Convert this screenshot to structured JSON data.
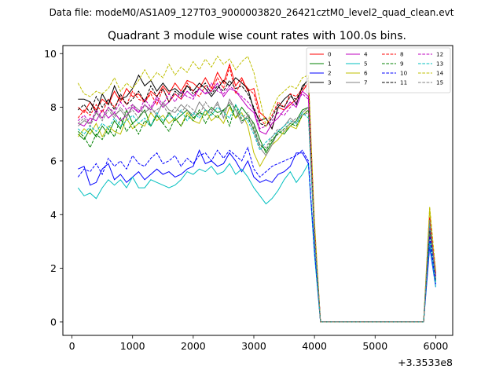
{
  "chart_data": {
    "type": "line",
    "suptitle": "Data file: modeM0/AS1A09_127T03_9000003820_26421cztM0_level2_quad_clean.evt",
    "title": "Quadrant 3 module wise count rates with 100.0s bins.",
    "xlabel": "",
    "ylabel": "",
    "x_offset_label": "+3.3533e8",
    "xlim": [
      -150,
      6280
    ],
    "ylim": [
      -0.5,
      10.3
    ],
    "xticks": [
      0,
      1000,
      2000,
      3000,
      4000,
      5000,
      6000
    ],
    "yticks": [
      0,
      2,
      4,
      6,
      8,
      10
    ],
    "grid": false,
    "legend_position": "top-right",
    "legend_columns": 4,
    "x": [
      100,
      200,
      300,
      400,
      500,
      600,
      700,
      800,
      900,
      1000,
      1100,
      1200,
      1300,
      1400,
      1500,
      1600,
      1700,
      1800,
      1900,
      2000,
      2100,
      2200,
      2300,
      2400,
      2500,
      2600,
      2700,
      2800,
      2900,
      3000,
      3100,
      3200,
      3300,
      3400,
      3500,
      3600,
      3700,
      3800,
      3900,
      4000,
      4100,
      4200,
      4300,
      4400,
      4500,
      4600,
      4700,
      4800,
      4900,
      5000,
      5100,
      5200,
      5300,
      5400,
      5500,
      5600,
      5700,
      5800,
      5900,
      6000
    ],
    "series": [
      {
        "name": "0",
        "color": "#ff0000",
        "dash": "solid",
        "values": [
          8.0,
          7.8,
          8.2,
          7.9,
          8.3,
          8.1,
          8.6,
          8.2,
          8.7,
          8.4,
          8.5,
          8.2,
          8.6,
          8.4,
          8.8,
          8.5,
          8.9,
          8.6,
          9.0,
          8.9,
          8.7,
          9.1,
          8.7,
          9.3,
          8.9,
          9.6,
          8.8,
          9.1,
          8.6,
          8.7,
          7.8,
          7.6,
          7.2,
          8.0,
          7.9,
          8.1,
          8.3,
          8.6,
          8.9,
          3.5,
          0.0,
          0,
          0,
          0,
          0,
          0,
          0,
          0,
          0,
          0,
          0,
          0,
          0,
          0,
          0,
          0,
          0,
          0.0,
          3.9,
          1.8
        ]
      },
      {
        "name": "1",
        "color": "#008000",
        "dash": "solid",
        "values": [
          7.0,
          6.8,
          7.2,
          6.9,
          7.3,
          7.0,
          7.5,
          7.2,
          7.9,
          7.4,
          7.6,
          7.9,
          7.3,
          7.7,
          7.4,
          7.8,
          7.5,
          7.7,
          7.9,
          7.6,
          7.8,
          7.7,
          8.0,
          7.8,
          7.9,
          8.1,
          7.6,
          8.0,
          7.7,
          7.4,
          6.8,
          6.3,
          6.7,
          7.1,
          7.0,
          7.3,
          7.5,
          7.9,
          8.0,
          3.3,
          0.0,
          0,
          0,
          0,
          0,
          0,
          0,
          0,
          0,
          0,
          0,
          0,
          0,
          0,
          0,
          0,
          0,
          0.0,
          3.5,
          1.6
        ]
      },
      {
        "name": "2",
        "color": "#0000ff",
        "dash": "solid",
        "values": [
          5.7,
          5.8,
          5.1,
          5.2,
          5.7,
          5.9,
          5.3,
          5.5,
          5.2,
          5.4,
          5.6,
          5.3,
          5.5,
          5.7,
          5.5,
          5.6,
          5.4,
          5.5,
          5.7,
          5.8,
          6.4,
          5.9,
          6.0,
          5.8,
          5.9,
          6.3,
          6.0,
          5.6,
          6.0,
          5.4,
          5.2,
          5.3,
          5.2,
          5.5,
          5.6,
          5.8,
          6.3,
          6.3,
          5.9,
          2.6,
          0.0,
          0,
          0,
          0,
          0,
          0,
          0,
          0,
          0,
          0,
          0,
          0,
          0,
          0,
          0,
          0,
          0,
          0.0,
          2.8,
          1.3
        ]
      },
      {
        "name": "3",
        "color": "#000000",
        "dash": "solid",
        "values": [
          8.3,
          8.3,
          8.2,
          7.8,
          8.5,
          8.1,
          8.8,
          8.3,
          8.4,
          8.7,
          9.2,
          8.8,
          9.0,
          8.6,
          8.9,
          8.6,
          8.7,
          8.5,
          8.8,
          8.6,
          8.9,
          8.7,
          8.4,
          8.7,
          9.0,
          8.8,
          9.1,
          8.9,
          8.7,
          7.9,
          7.5,
          7.6,
          7.2,
          8.0,
          8.3,
          8.5,
          8.1,
          8.8,
          9.0,
          3.4,
          0.0,
          0,
          0,
          0,
          0,
          0,
          0,
          0,
          0,
          0,
          0,
          0,
          0,
          0,
          0,
          0,
          0,
          0.0,
          3.6,
          1.7
        ]
      },
      {
        "name": "4",
        "color": "#bf00bf",
        "dash": "solid",
        "values": [
          7.4,
          7.3,
          7.6,
          7.5,
          7.9,
          7.6,
          7.8,
          7.5,
          7.7,
          8.0,
          7.8,
          8.1,
          7.9,
          8.3,
          8.0,
          8.2,
          8.5,
          8.3,
          8.6,
          8.4,
          8.7,
          8.5,
          8.6,
          8.9,
          8.4,
          8.7,
          8.6,
          8.3,
          8.0,
          7.8,
          7.1,
          7.0,
          7.4,
          7.6,
          7.9,
          8.2,
          8.0,
          8.6,
          8.4,
          3.4,
          0.0,
          0,
          0,
          0,
          0,
          0,
          0,
          0,
          0,
          0,
          0,
          0,
          0,
          0,
          0,
          0,
          0,
          0.0,
          3.7,
          1.6
        ]
      },
      {
        "name": "5",
        "color": "#00bfbf",
        "dash": "solid",
        "values": [
          5.0,
          4.7,
          4.8,
          4.6,
          5.0,
          5.3,
          5.1,
          5.3,
          5.0,
          5.4,
          5.0,
          5.0,
          5.3,
          5.2,
          5.1,
          5.0,
          5.1,
          5.3,
          5.6,
          5.5,
          5.7,
          5.6,
          5.8,
          5.5,
          5.6,
          5.9,
          5.5,
          5.7,
          5.4,
          5.0,
          4.7,
          4.4,
          4.6,
          4.9,
          5.3,
          5.6,
          5.2,
          5.5,
          5.9,
          2.5,
          0.0,
          0,
          0,
          0,
          0,
          0,
          0,
          0,
          0,
          0,
          0,
          0,
          0,
          0,
          0,
          0,
          0,
          0.0,
          3.0,
          1.3
        ]
      },
      {
        "name": "6",
        "color": "#bfbf00",
        "dash": "solid",
        "values": [
          6.9,
          7.2,
          7.0,
          7.4,
          6.9,
          7.3,
          7.1,
          7.0,
          7.6,
          7.2,
          7.4,
          7.3,
          7.8,
          7.5,
          7.7,
          7.4,
          7.6,
          7.3,
          7.8,
          7.5,
          7.4,
          7.9,
          7.5,
          7.7,
          7.4,
          8.0,
          7.6,
          7.8,
          7.3,
          6.3,
          5.8,
          6.2,
          6.6,
          6.8,
          7.1,
          7.3,
          7.2,
          7.7,
          7.9,
          3.2,
          0.0,
          0,
          0,
          0,
          0,
          0,
          0,
          0,
          0,
          0,
          0,
          0,
          0,
          0,
          0,
          0,
          0,
          0.0,
          4.2,
          1.5
        ]
      },
      {
        "name": "7",
        "color": "#808080",
        "dash": "solid",
        "values": [
          7.3,
          7.5,
          7.4,
          7.8,
          7.6,
          8.0,
          7.7,
          7.9,
          7.6,
          8.1,
          7.9,
          7.8,
          8.0,
          7.7,
          8.2,
          7.9,
          7.8,
          8.1,
          7.9,
          7.7,
          8.2,
          7.9,
          7.8,
          8.2,
          7.6,
          8.3,
          7.9,
          7.4,
          7.7,
          7.1,
          6.5,
          6.2,
          6.6,
          7.1,
          7.3,
          7.6,
          7.4,
          7.8,
          8.0,
          3.3,
          0.0,
          0,
          0,
          0,
          0,
          0,
          0,
          0,
          0,
          0,
          0,
          0,
          0,
          0,
          0,
          0,
          0,
          0.0,
          3.8,
          1.6
        ]
      },
      {
        "name": "8",
        "color": "#ff0000",
        "dash": "dashed",
        "values": [
          7.6,
          7.9,
          7.7,
          8.1,
          7.8,
          8.3,
          8.0,
          8.4,
          8.1,
          8.6,
          8.3,
          8.2,
          8.5,
          8.1,
          8.7,
          8.2,
          8.5,
          8.3,
          8.9,
          8.6,
          8.4,
          8.8,
          8.6,
          9.1,
          8.7,
          9.5,
          8.5,
          9.0,
          8.7,
          8.5,
          7.6,
          7.3,
          7.7,
          8.2,
          8.0,
          8.5,
          8.4,
          8.7,
          8.9,
          3.6,
          0.0,
          0,
          0,
          0,
          0,
          0,
          0,
          0,
          0,
          0,
          0,
          0,
          0,
          0,
          0,
          0,
          0,
          0.0,
          3.9,
          1.8
        ]
      },
      {
        "name": "9",
        "color": "#008000",
        "dash": "dashed",
        "values": [
          7.1,
          6.9,
          6.5,
          7.0,
          6.8,
          7.2,
          6.9,
          7.6,
          7.1,
          7.4,
          7.0,
          7.5,
          7.3,
          7.7,
          7.4,
          7.1,
          7.6,
          7.3,
          7.7,
          7.5,
          7.9,
          7.4,
          7.8,
          7.6,
          7.9,
          7.3,
          8.1,
          7.5,
          7.6,
          7.2,
          6.6,
          6.4,
          6.8,
          7.0,
          7.2,
          7.4,
          7.3,
          7.7,
          7.9,
          3.2,
          0.0,
          0,
          0,
          0,
          0,
          0,
          0,
          0,
          0,
          0,
          0,
          0,
          0,
          0,
          0,
          0,
          0,
          0.0,
          3.4,
          1.5
        ]
      },
      {
        "name": "10",
        "color": "#0000ff",
        "dash": "dashed",
        "values": [
          5.4,
          5.7,
          5.6,
          5.9,
          5.5,
          6.1,
          5.8,
          6.0,
          5.7,
          6.2,
          5.9,
          5.8,
          6.1,
          6.3,
          5.9,
          6.0,
          6.2,
          5.8,
          6.1,
          5.9,
          6.2,
          6.3,
          6.0,
          6.4,
          6.1,
          6.4,
          6.2,
          6.0,
          6.5,
          5.7,
          5.4,
          5.6,
          5.8,
          5.9,
          6.0,
          6.1,
          6.2,
          6.4,
          6.0,
          2.7,
          0.0,
          0,
          0,
          0,
          0,
          0,
          0,
          0,
          0,
          0,
          0,
          0,
          0,
          0,
          0,
          0,
          0,
          0.0,
          3.2,
          1.4
        ]
      },
      {
        "name": "11",
        "color": "#000000",
        "dash": "dashed",
        "values": [
          7.9,
          8.1,
          7.8,
          8.4,
          8.0,
          8.3,
          7.9,
          8.5,
          8.1,
          8.3,
          8.6,
          8.2,
          8.8,
          8.4,
          8.7,
          8.2,
          8.6,
          8.4,
          8.8,
          8.5,
          8.7,
          8.9,
          8.5,
          8.8,
          8.6,
          9.0,
          8.7,
          8.8,
          8.5,
          8.0,
          7.4,
          7.3,
          7.6,
          8.1,
          8.0,
          8.4,
          8.3,
          8.7,
          9.1,
          3.5,
          0.0,
          0,
          0,
          0,
          0,
          0,
          0,
          0,
          0,
          0,
          0,
          0,
          0,
          0,
          0,
          0,
          0,
          0.0,
          3.5,
          1.7
        ]
      },
      {
        "name": "12",
        "color": "#bf00bf",
        "dash": "dashed",
        "values": [
          7.5,
          7.7,
          7.4,
          7.9,
          7.6,
          8.0,
          7.8,
          8.2,
          7.9,
          8.1,
          7.8,
          8.3,
          8.0,
          8.4,
          8.1,
          8.5,
          8.2,
          8.6,
          8.4,
          8.3,
          8.7,
          8.5,
          8.9,
          8.6,
          8.5,
          8.8,
          8.6,
          8.4,
          8.2,
          7.9,
          7.2,
          7.3,
          7.5,
          7.8,
          7.7,
          8.0,
          8.2,
          8.5,
          8.3,
          3.4,
          0.0,
          0,
          0,
          0,
          0,
          0,
          0,
          0,
          0,
          0,
          0,
          0,
          0,
          0,
          0,
          0,
          0,
          0.0,
          3.6,
          1.7
        ]
      },
      {
        "name": "13",
        "color": "#00bfbf",
        "dash": "dashed",
        "values": [
          7.2,
          7.0,
          7.3,
          7.1,
          7.4,
          7.2,
          7.6,
          7.3,
          7.5,
          7.7,
          7.4,
          7.6,
          7.3,
          7.8,
          7.5,
          7.7,
          7.6,
          7.9,
          7.5,
          7.8,
          7.6,
          7.9,
          7.7,
          8.0,
          7.8,
          7.6,
          8.1,
          7.7,
          7.5,
          7.0,
          6.4,
          6.7,
          6.9,
          7.1,
          7.3,
          7.5,
          7.4,
          7.8,
          7.6,
          3.1,
          0.0,
          0,
          0,
          0,
          0,
          0,
          0,
          0,
          0,
          0,
          0,
          0,
          0,
          0,
          0,
          0,
          0,
          0.0,
          3.7,
          1.5
        ]
      },
      {
        "name": "14",
        "color": "#bfbf00",
        "dash": "dashed",
        "values": [
          8.9,
          8.5,
          8.4,
          8.6,
          8.5,
          8.7,
          9.1,
          8.6,
          8.9,
          8.7,
          9.0,
          9.4,
          9.0,
          9.3,
          9.1,
          9.6,
          9.2,
          9.5,
          9.3,
          9.7,
          9.4,
          9.8,
          9.5,
          9.9,
          9.6,
          9.8,
          9.4,
          9.7,
          9.9,
          9.3,
          8.3,
          7.3,
          7.9,
          8.4,
          8.6,
          8.8,
          8.7,
          9.1,
          9.2,
          3.8,
          0.0,
          0,
          0,
          0,
          0,
          0,
          0,
          0,
          0,
          0,
          0,
          0,
          0,
          0,
          0,
          0,
          0,
          0.0,
          4.3,
          1.9
        ]
      },
      {
        "name": "15",
        "color": "#808080",
        "dash": "dashed",
        "values": [
          7.4,
          7.6,
          7.3,
          7.8,
          7.5,
          7.9,
          7.6,
          8.0,
          7.7,
          7.9,
          7.6,
          8.1,
          7.8,
          7.9,
          8.1,
          7.7,
          8.0,
          7.8,
          8.1,
          7.9,
          7.7,
          8.2,
          7.9,
          8.1,
          7.8,
          8.2,
          7.9,
          7.6,
          7.8,
          7.3,
          6.6,
          6.5,
          6.9,
          7.2,
          7.1,
          7.4,
          7.6,
          7.7,
          7.8,
          3.2,
          0.0,
          0,
          0,
          0,
          0,
          0,
          0,
          0,
          0,
          0,
          0,
          0,
          0,
          0,
          0,
          0,
          0,
          0.0,
          3.8,
          1.6
        ]
      }
    ]
  }
}
